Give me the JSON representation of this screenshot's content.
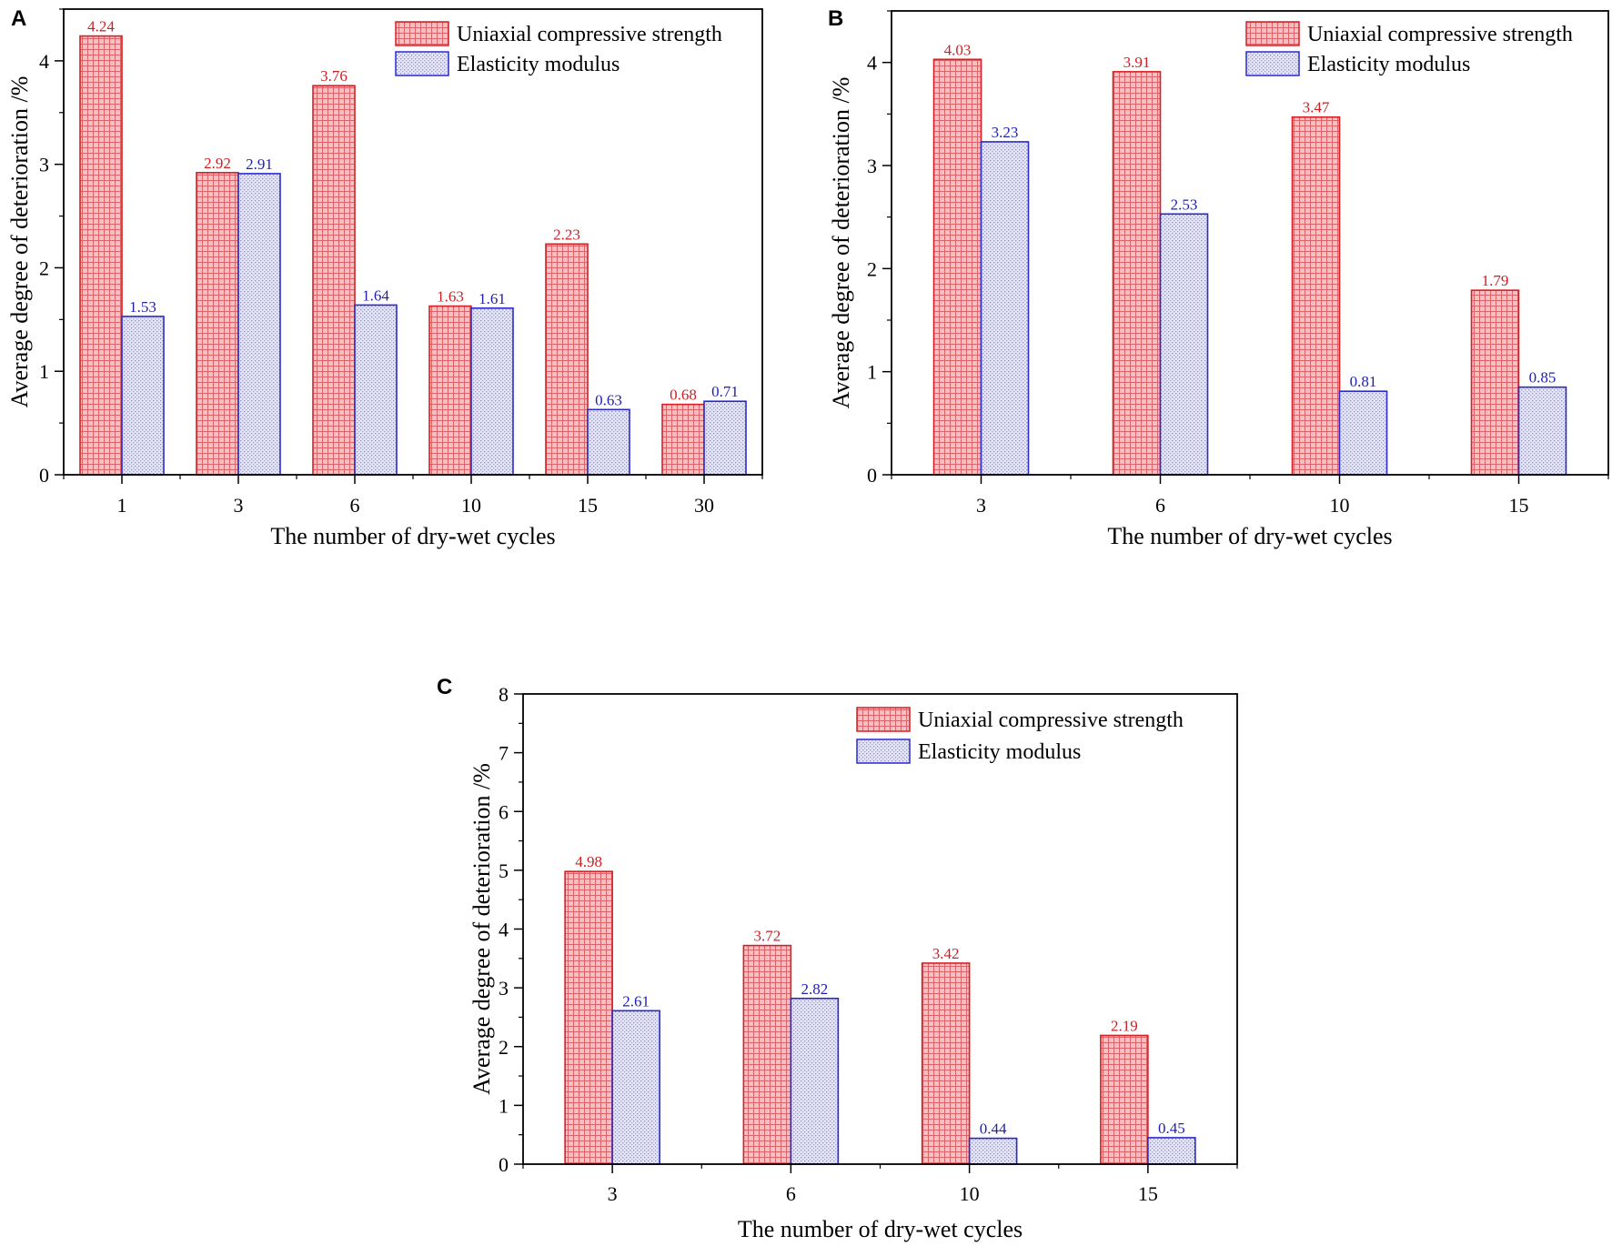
{
  "figure": {
    "colors": {
      "ucs_fill": "#f3c1c3",
      "ucs_stroke": "#d72025",
      "ucs_grid": "#d9646a",
      "em_fill": "#e6e6f0",
      "em_stroke": "#2a2ad0",
      "em_dot": "#8f8fb8",
      "label_red": "#cc1f24",
      "label_blue": "#1f1fb4"
    }
  },
  "chart_data": [
    {
      "panel": "A",
      "type": "bar",
      "title": "",
      "xlabel": "The number of dry-wet cycles",
      "ylabel": "Average degree of deterioration /%",
      "categories": [
        "1",
        "3",
        "6",
        "10",
        "15",
        "30"
      ],
      "series": [
        {
          "name": "Uniaxial compressive strength",
          "values": [
            4.24,
            2.92,
            3.76,
            1.63,
            2.23,
            0.68
          ],
          "labels": [
            "4.24",
            "2.92",
            "3.76",
            "1.63",
            "2.23",
            "0.68"
          ]
        },
        {
          "name": "Elasticity modulus",
          "values": [
            1.53,
            2.91,
            1.64,
            1.61,
            0.63,
            0.71
          ],
          "labels": [
            "1.53",
            "2.91",
            "1.64",
            "1.61",
            "0.63",
            "0.71"
          ]
        }
      ],
      "ylim": [
        0,
        4.5
      ],
      "yticks": [
        "0",
        "1",
        "2",
        "3",
        "4"
      ],
      "legend_position": "top-right",
      "grid": false
    },
    {
      "panel": "B",
      "type": "bar",
      "title": "",
      "xlabel": "The number of dry-wet cycles",
      "ylabel": "Average degree of deterioration /%",
      "categories": [
        "3",
        "6",
        "10",
        "15"
      ],
      "series": [
        {
          "name": "Uniaxial compressive strength",
          "values": [
            4.03,
            3.91,
            3.47,
            1.79
          ],
          "labels": [
            "4.03",
            "3.91",
            "3.47",
            "1.79"
          ]
        },
        {
          "name": "Elasticity modulus",
          "values": [
            3.23,
            2.53,
            0.81,
            0.85
          ],
          "labels": [
            "3.23",
            "2.53",
            "0.81",
            "0.85"
          ]
        }
      ],
      "ylim": [
        0,
        4.5
      ],
      "yticks": [
        "0",
        "1",
        "2",
        "3",
        "4"
      ],
      "legend_position": "top-right",
      "grid": false
    },
    {
      "panel": "C",
      "type": "bar",
      "title": "",
      "xlabel": "The number of dry-wet cycles",
      "ylabel": "Average degree of deterioration /%",
      "categories": [
        "3",
        "6",
        "10",
        "15"
      ],
      "series": [
        {
          "name": "Uniaxial compressive strength",
          "values": [
            4.98,
            3.72,
            3.42,
            2.19
          ],
          "labels": [
            "4.98",
            "3.72",
            "3.42",
            "2.19"
          ]
        },
        {
          "name": "Elasticity modulus",
          "values": [
            2.61,
            2.82,
            0.44,
            0.45
          ],
          "labels": [
            "2.61",
            "2.82",
            "0.44",
            "0.45"
          ]
        }
      ],
      "ylim": [
        0,
        8
      ],
      "yticks": [
        "0",
        "1",
        "2",
        "3",
        "4",
        "5",
        "6",
        "7",
        "8"
      ],
      "legend_position": "top-right",
      "grid": false
    }
  ]
}
